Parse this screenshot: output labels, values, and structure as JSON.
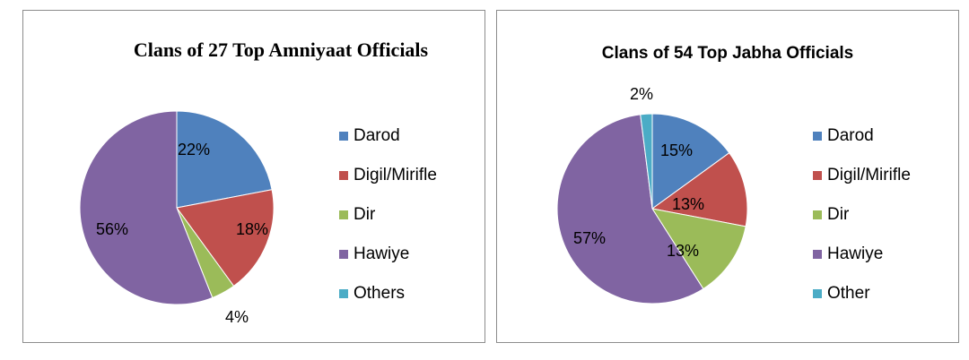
{
  "chart_data": [
    {
      "type": "pie",
      "title": "Clans of 27 Top Amniyaat Officials",
      "categories": [
        "Darod",
        "Digil/Mirifle",
        "Dir",
        "Hawiye",
        "Others"
      ],
      "values": [
        22,
        18,
        4,
        56,
        0
      ],
      "labels": [
        "22%",
        "18%",
        "4%",
        "56%",
        ""
      ],
      "colors": [
        "#4f81bd",
        "#c0504d",
        "#9bbb59",
        "#8064a2",
        "#4bacc6"
      ],
      "legend_position": "right"
    },
    {
      "type": "pie",
      "title": "Clans of 54 Top Jabha Officials",
      "categories": [
        "Darod",
        "Digil/Mirifle",
        "Dir",
        "Hawiye",
        "Other"
      ],
      "values": [
        15,
        13,
        13,
        57,
        2
      ],
      "labels": [
        "15%",
        "13%",
        "13%",
        "57%",
        "2%"
      ],
      "colors": [
        "#4f81bd",
        "#c0504d",
        "#9bbb59",
        "#8064a2",
        "#4bacc6"
      ],
      "legend_position": "right"
    }
  ]
}
